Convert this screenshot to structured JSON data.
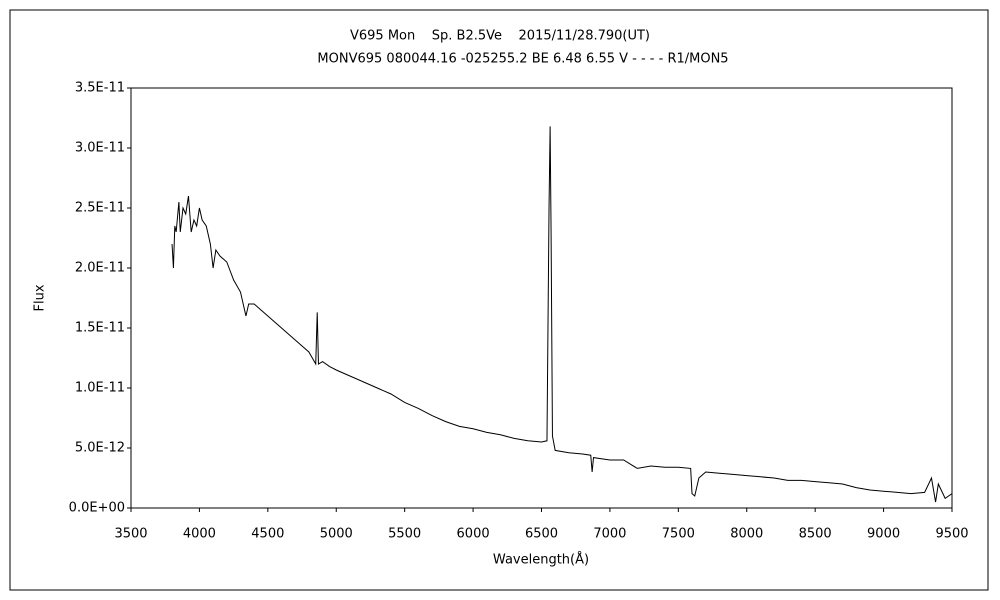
{
  "chart_data": {
    "type": "line",
    "title": "V695 Mon    Sp. B2.5Ve    2015/11/28.790(UT)",
    "subtitle": "MONV695 080044.16 -025255.2 BE 6.48 6.55 V - - - - R1/MON5",
    "x_label": "Wavelength(Å)",
    "y_label": "Flux",
    "color": "#000000",
    "grid": false,
    "xlim": [
      3500,
      9500
    ],
    "xticks": [
      3500,
      4000,
      4500,
      5000,
      5500,
      6000,
      6500,
      7000,
      7500,
      8000,
      8500,
      9000,
      9500
    ],
    "ylim": [
      0,
      3.5e-11
    ],
    "yticks": [
      {
        "value": 0,
        "label": "0.0E+00"
      },
      {
        "value": 5e-12,
        "label": "5.0E-12"
      },
      {
        "value": 1e-11,
        "label": "1.0E-11"
      },
      {
        "value": 1.5e-11,
        "label": "1.5E-11"
      },
      {
        "value": 2e-11,
        "label": "2.0E-11"
      },
      {
        "value": 2.5e-11,
        "label": "2.5E-11"
      },
      {
        "value": 3e-11,
        "label": "3.0E-11"
      },
      {
        "value": 3.5e-11,
        "label": "3.5E-11"
      }
    ],
    "x": [
      3800,
      3810,
      3820,
      3830,
      3850,
      3860,
      3880,
      3900,
      3920,
      3940,
      3960,
      3980,
      4000,
      4020,
      4050,
      4080,
      4100,
      4120,
      4150,
      4200,
      4250,
      4300,
      4340,
      4360,
      4400,
      4450,
      4500,
      4550,
      4600,
      4650,
      4700,
      4750,
      4800,
      4850,
      4861,
      4870,
      4900,
      4950,
      5000,
      5100,
      5200,
      5300,
      5400,
      5500,
      5600,
      5700,
      5800,
      5900,
      6000,
      6100,
      6200,
      6300,
      6400,
      6500,
      6540,
      6555,
      6563,
      6570,
      6580,
      6600,
      6700,
      6800,
      6860,
      6870,
      6880,
      7000,
      7100,
      7200,
      7300,
      7400,
      7500,
      7590,
      7600,
      7620,
      7650,
      7700,
      7800,
      7900,
      8000,
      8100,
      8200,
      8300,
      8400,
      8500,
      8600,
      8700,
      8800,
      8900,
      9000,
      9100,
      9200,
      9300,
      9350,
      9380,
      9400,
      9450,
      9500
    ],
    "values": [
      2.2e-11,
      2e-11,
      2.35e-11,
      2.3e-11,
      2.55e-11,
      2.3e-11,
      2.5e-11,
      2.45e-11,
      2.6e-11,
      2.3e-11,
      2.4e-11,
      2.35e-11,
      2.5e-11,
      2.4e-11,
      2.35e-11,
      2.2e-11,
      2e-11,
      2.15e-11,
      2.1e-11,
      2.05e-11,
      1.9e-11,
      1.8e-11,
      1.6e-11,
      1.7e-11,
      1.7e-11,
      1.65e-11,
      1.6e-11,
      1.55e-11,
      1.5e-11,
      1.45e-11,
      1.4e-11,
      1.35e-11,
      1.3e-11,
      1.2e-11,
      1.63e-11,
      1.2e-11,
      1.22e-11,
      1.18e-11,
      1.15e-11,
      1.1e-11,
      1.05e-11,
      1e-11,
      9.5e-12,
      8.8e-12,
      8.3e-12,
      7.7e-12,
      7.2e-12,
      6.8e-12,
      6.6e-12,
      6.3e-12,
      6.1e-12,
      5.8e-12,
      5.6e-12,
      5.5e-12,
      5.6e-12,
      2.5e-11,
      3.18e-11,
      2.3e-11,
      6e-12,
      4.8e-12,
      4.6e-12,
      4.5e-12,
      4.4e-12,
      3e-12,
      4.2e-12,
      4e-12,
      4e-12,
      3.3e-12,
      3.5e-12,
      3.4e-12,
      3.4e-12,
      3.3e-12,
      1.2e-12,
      1e-12,
      2.5e-12,
      3e-12,
      2.9e-12,
      2.8e-12,
      2.7e-12,
      2.6e-12,
      2.5e-12,
      2.3e-12,
      2.3e-12,
      2.2e-12,
      2.1e-12,
      2e-12,
      1.7e-12,
      1.5e-12,
      1.4e-12,
      1.3e-12,
      1.2e-12,
      1.3e-12,
      2.5e-12,
      5e-13,
      2e-12,
      8e-13,
      1.2e-12
    ]
  }
}
